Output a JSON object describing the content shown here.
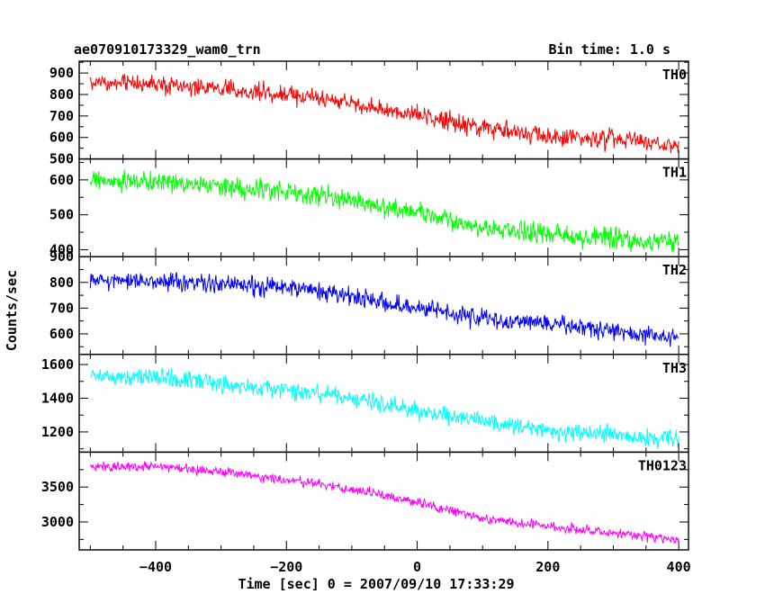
{
  "header": {
    "title": "ae070910173329_wam0_trn",
    "bin_time": "Bin time: 1.0 s"
  },
  "chart_data": {
    "type": "line",
    "xlabel": "Time [sec] 0 = 2007/09/10 17:33:29",
    "ylabel": "Counts/sec",
    "xlim": [
      -517,
      415
    ],
    "x_ticks": [
      -400,
      -200,
      0,
      200,
      400
    ],
    "x_start": -500,
    "x_end": 400,
    "x_step": 1,
    "panels": [
      {
        "name": "TH0",
        "color": "#ff0000",
        "ylim": [
          500,
          955
        ],
        "y_ticks": [
          500,
          600,
          700,
          800,
          900
        ],
        "trend": [
          [
            -500,
            855
          ],
          [
            -400,
            850
          ],
          [
            -300,
            825
          ],
          [
            -200,
            800
          ],
          [
            -100,
            755
          ],
          [
            0,
            700
          ],
          [
            100,
            645
          ],
          [
            200,
            605
          ],
          [
            300,
            590
          ],
          [
            400,
            560
          ]
        ],
        "noise": 45
      },
      {
        "name": "TH1",
        "color": "#00ff00",
        "ylim": [
          380,
          660
        ],
        "y_ticks": [
          400,
          500,
          600
        ],
        "trend": [
          [
            -500,
            595
          ],
          [
            -400,
            595
          ],
          [
            -300,
            580
          ],
          [
            -200,
            565
          ],
          [
            -100,
            540
          ],
          [
            0,
            505
          ],
          [
            100,
            465
          ],
          [
            200,
            445
          ],
          [
            300,
            430
          ],
          [
            400,
            420
          ]
        ],
        "noise": 30
      },
      {
        "name": "TH2",
        "color": "#0000ff",
        "ylim": [
          520,
          900
        ],
        "y_ticks": [
          600,
          700,
          800,
          900
        ],
        "trend": [
          [
            -500,
            810
          ],
          [
            -400,
            805
          ],
          [
            -300,
            795
          ],
          [
            -200,
            780
          ],
          [
            -100,
            745
          ],
          [
            0,
            700
          ],
          [
            100,
            660
          ],
          [
            200,
            640
          ],
          [
            300,
            610
          ],
          [
            400,
            585
          ]
        ],
        "noise": 38
      },
      {
        "name": "TH3",
        "color": "#00ffff",
        "ylim": [
          1080,
          1660
        ],
        "y_ticks": [
          1200,
          1400,
          1600
        ],
        "trend": [
          [
            -500,
            1530
          ],
          [
            -400,
            1525
          ],
          [
            -300,
            1490
          ],
          [
            -200,
            1450
          ],
          [
            -100,
            1400
          ],
          [
            0,
            1325
          ],
          [
            100,
            1260
          ],
          [
            200,
            1210
          ],
          [
            300,
            1180
          ],
          [
            400,
            1160
          ]
        ],
        "noise": 55
      },
      {
        "name": "TH0123",
        "color": "#ff00ff",
        "ylim": [
          2600,
          4000
        ],
        "y_ticks": [
          3000,
          3500
        ],
        "trend": [
          [
            -500,
            3790
          ],
          [
            -400,
            3790
          ],
          [
            -300,
            3720
          ],
          [
            -200,
            3600
          ],
          [
            -100,
            3470
          ],
          [
            0,
            3290
          ],
          [
            100,
            3050
          ],
          [
            200,
            2940
          ],
          [
            300,
            2850
          ],
          [
            400,
            2740
          ]
        ],
        "noise": 70
      }
    ]
  }
}
